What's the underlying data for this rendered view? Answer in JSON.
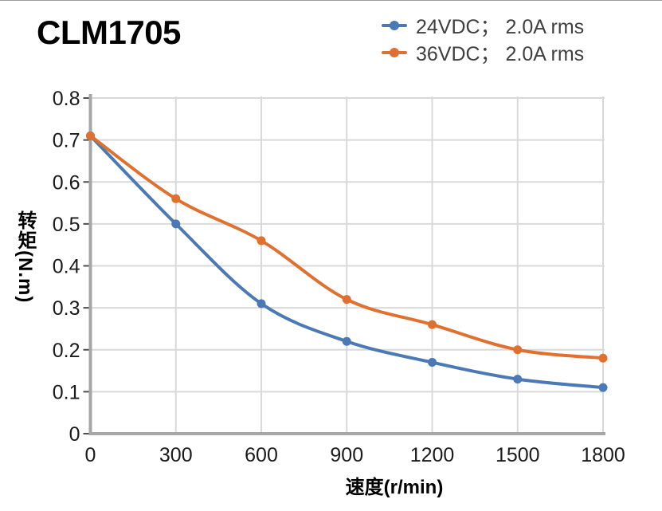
{
  "header": {
    "title": "CLM1705"
  },
  "chart_data": {
    "type": "line",
    "x": [
      0,
      300,
      600,
      900,
      1200,
      1500,
      1800
    ],
    "x_tick_labels": [
      "0",
      "300",
      "600",
      "900",
      "1200",
      "1500",
      "1800"
    ],
    "y_ticks": [
      0,
      0.1,
      0.2,
      0.3,
      0.4,
      0.5,
      0.6,
      0.7,
      0.8
    ],
    "y_tick_labels": [
      "0",
      "0.1",
      "0.2",
      "0.3",
      "0.4",
      "0.5",
      "0.6",
      "0.7",
      "0.8"
    ],
    "series": [
      {
        "name": "24VDC；  2.0A rms",
        "color": "#4A79B5",
        "values": [
          0.71,
          0.5,
          0.31,
          0.22,
          0.17,
          0.13,
          0.11
        ]
      },
      {
        "name": "36VDC；  2.0A rms",
        "color": "#E0702F",
        "values": [
          0.71,
          0.56,
          0.46,
          0.32,
          0.26,
          0.2,
          0.18
        ]
      }
    ],
    "title": "CLM1705",
    "xlabel": "速度(r/min)",
    "ylabel": "转矩(N.m)",
    "xlim": [
      0,
      1800
    ],
    "ylim": [
      0,
      0.8
    ],
    "grid": true,
    "smooth": true,
    "legend_position": "top-right",
    "colors": {
      "grid": "#D9D9D9",
      "axis": "#A6A6A6",
      "tick": "#4D4D4D",
      "tick_label": "#1A1A1A",
      "legend_text": "#3F3F3F"
    }
  }
}
